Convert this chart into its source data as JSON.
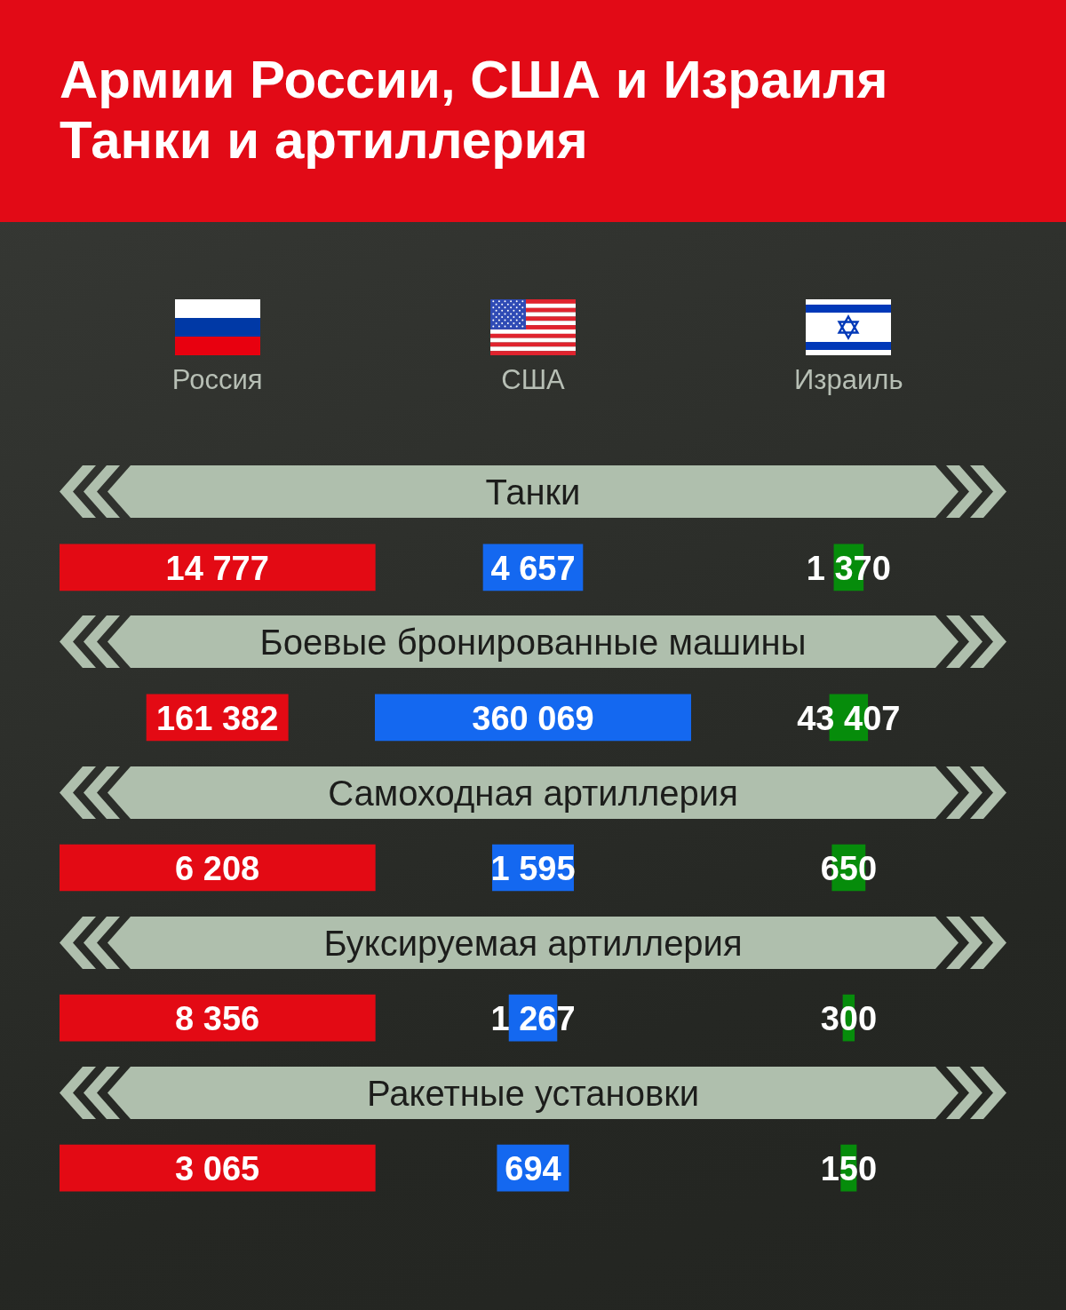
{
  "chart_data": {
    "type": "other",
    "title": "Армии России, США и Израиля",
    "subtitle": "Танки и артиллерия",
    "categories": [
      "Россия",
      "США",
      "Израиль"
    ],
    "series": [
      {
        "name": "Танки",
        "colors": [
          "#e30a14",
          "#1468f0",
          "#068c0b"
        ],
        "values": [
          14777,
          4657,
          1370
        ],
        "value_labels": [
          "14 777",
          "4 657",
          "1 370"
        ]
      },
      {
        "name": "Боевые бронированные машины",
        "colors": [
          "#e30a14",
          "#1468f0",
          "#068c0b"
        ],
        "values": [
          161382,
          360069,
          43407
        ],
        "value_labels": [
          "161 382",
          "360 069",
          "43 407"
        ]
      },
      {
        "name": "Самоходная артиллерия",
        "colors": [
          "#e30a14",
          "#1468f0",
          "#068c0b"
        ],
        "values": [
          6208,
          1595,
          650
        ],
        "value_labels": [
          "6 208",
          "1 595",
          "650"
        ]
      },
      {
        "name": "Буксируемая артиллерия",
        "colors": [
          "#e30a14",
          "#1468f0",
          "#068c0b"
        ],
        "values": [
          8356,
          1267,
          300
        ],
        "value_labels": [
          "8 356",
          "1 267",
          "300"
        ]
      },
      {
        "name": "Ракетные установки",
        "colors": [
          "#e30a14",
          "#1468f0",
          "#068c0b"
        ],
        "values": [
          3065,
          694,
          150
        ],
        "value_labels": [
          "3 065",
          "694",
          "150"
        ]
      }
    ]
  }
}
